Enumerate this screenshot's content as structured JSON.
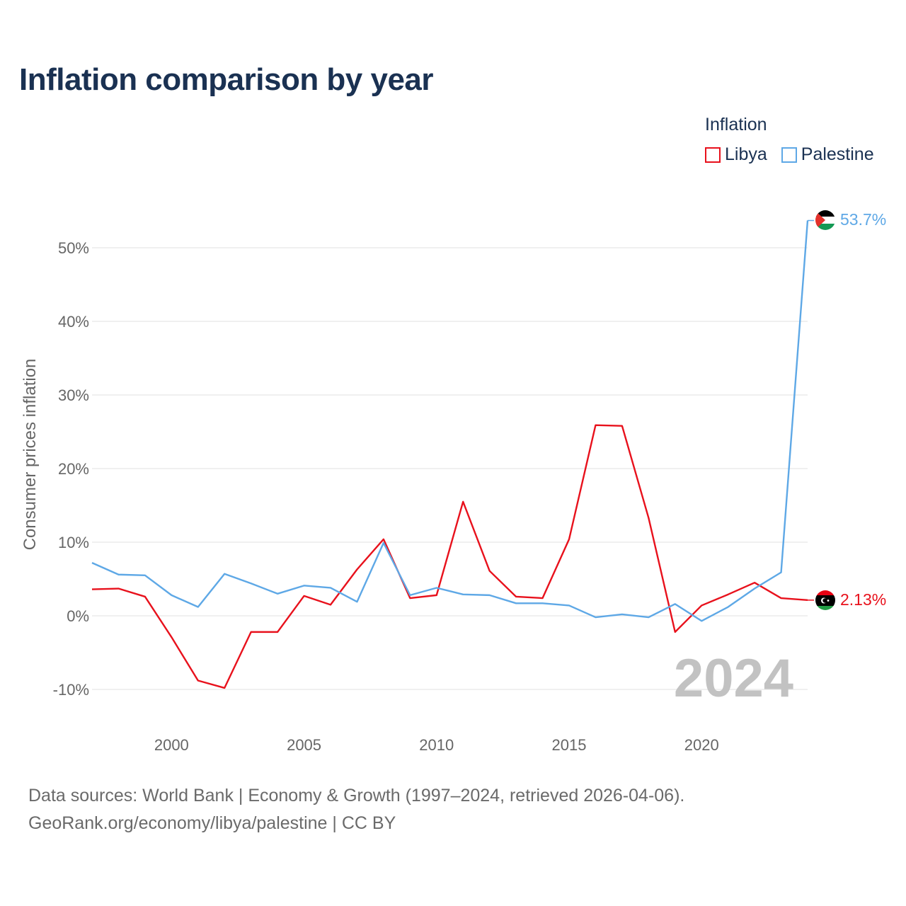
{
  "title": "Inflation comparison by year",
  "legend": {
    "title": "Inflation",
    "items": [
      {
        "label": "Libya",
        "color": "#e8111c"
      },
      {
        "label": "Palestine",
        "color": "#5ea8e6"
      }
    ]
  },
  "footer": {
    "line1": "Data sources: World Bank | Economy & Growth (1997–2024, retrieved 2026-04-06).",
    "line2": "GeoRank.org/economy/libya/palestine | CC BY"
  },
  "chart_data": {
    "type": "line",
    "title": "Inflation comparison by year",
    "xlabel": "",
    "ylabel": "Consumer prices inflation",
    "x": [
      1997,
      1998,
      1999,
      2000,
      2001,
      2002,
      2003,
      2004,
      2005,
      2006,
      2007,
      2008,
      2009,
      2010,
      2011,
      2012,
      2013,
      2014,
      2015,
      2016,
      2017,
      2018,
      2019,
      2020,
      2021,
      2022,
      2023,
      2024
    ],
    "xlim": [
      1997,
      2024
    ],
    "ylim": [
      -14,
      56
    ],
    "x_ticks": [
      2000,
      2005,
      2010,
      2015,
      2020
    ],
    "x_tick_labels": [
      "2000",
      "2005",
      "2010",
      "2015",
      "2020"
    ],
    "y_ticks": [
      -10,
      0,
      10,
      20,
      30,
      40,
      50
    ],
    "y_tick_labels": [
      "-10%",
      "0%",
      "10%",
      "20%",
      "30%",
      "40%",
      "50%"
    ],
    "grid": true,
    "current_year_label": "2024",
    "series": [
      {
        "name": "Libya",
        "color": "#e8111c",
        "end_label": "2.13%",
        "values": [
          3.6,
          3.7,
          2.6,
          -2.9,
          -8.8,
          -9.8,
          -2.2,
          -2.2,
          2.7,
          1.5,
          6.3,
          10.4,
          2.4,
          2.8,
          15.5,
          6.1,
          2.6,
          2.4,
          10.4,
          25.9,
          25.8,
          13.3,
          -2.2,
          1.4,
          2.9,
          4.5,
          2.4,
          2.13
        ]
      },
      {
        "name": "Palestine",
        "color": "#5ea8e6",
        "end_label": "53.7%",
        "values": [
          7.2,
          5.6,
          5.5,
          2.8,
          1.2,
          5.7,
          4.4,
          3.0,
          4.1,
          3.8,
          1.9,
          9.9,
          2.8,
          3.8,
          2.9,
          2.8,
          1.7,
          1.7,
          1.4,
          -0.2,
          0.2,
          -0.2,
          1.6,
          -0.7,
          1.2,
          3.7,
          5.9,
          53.7
        ]
      }
    ]
  }
}
